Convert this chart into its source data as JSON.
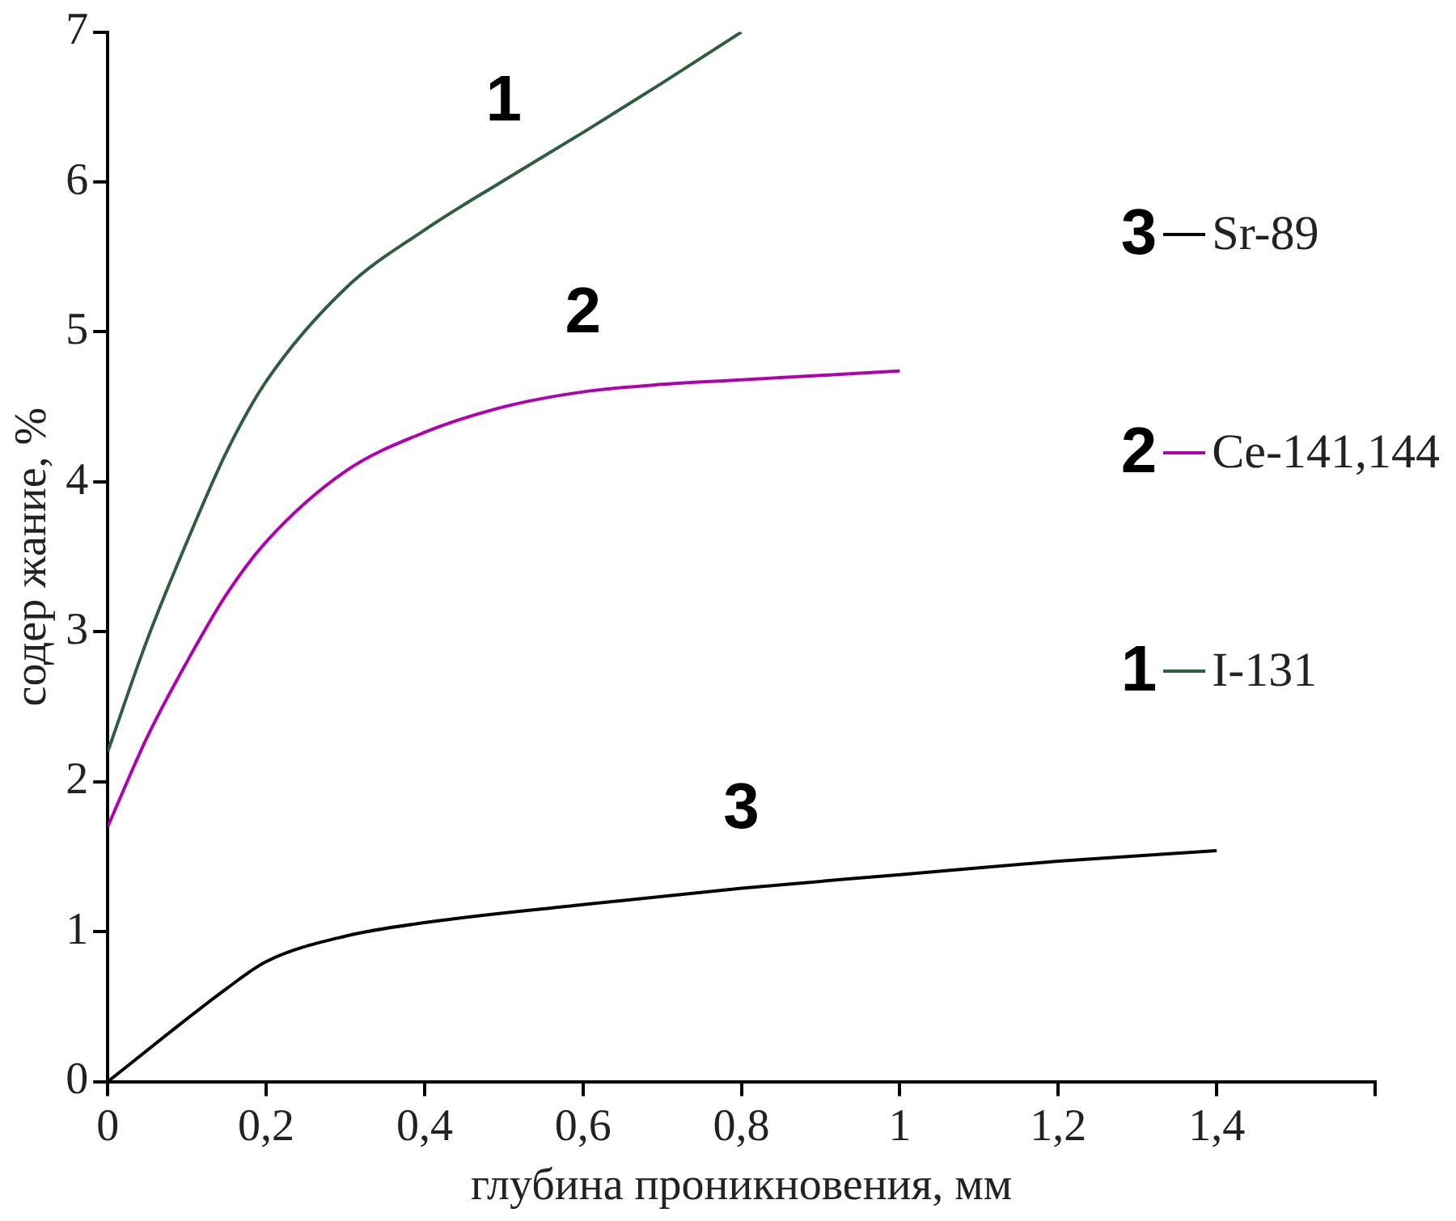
{
  "chart_data": {
    "type": "line",
    "xlabel": "глубина проникновения, мм",
    "ylabel": "содер жание, %",
    "xlim": [
      0,
      1.6
    ],
    "ylim": [
      0,
      7
    ],
    "xticks": [
      0,
      {
        "value": 0.2,
        "label": "0,2"
      },
      {
        "value": 0.4,
        "label": "0,4"
      },
      {
        "value": 0.6,
        "label": "0,6"
      },
      {
        "value": 0.8,
        "label": "0,8"
      },
      1,
      {
        "value": 1.2,
        "label": "1,2"
      },
      {
        "value": 1.4,
        "label": "1,4"
      },
      {
        "value": 1.6,
        "label": null
      }
    ],
    "yticks": [
      0,
      1,
      2,
      3,
      4,
      5,
      6,
      7
    ],
    "grid": false,
    "legend": "right",
    "marker": "none",
    "line_style": "solid",
    "annotations": [
      "1",
      "2",
      "3"
    ],
    "series": [
      {
        "name": "I-131",
        "color": "#2e5e3e",
        "x": [
          0,
          0.05,
          0.1,
          0.15,
          0.2,
          0.3,
          0.4,
          0.5,
          0.6,
          0.7,
          0.8
        ],
        "values": [
          2.2,
          2.95,
          3.6,
          4.2,
          4.67,
          5.29,
          5.68,
          6.01,
          6.33,
          6.66,
          7.0
        ]
      },
      {
        "name": "Ce-141,144",
        "color": "#b000b0",
        "x": [
          0,
          0.05,
          0.1,
          0.15,
          0.2,
          0.3,
          0.4,
          0.5,
          0.6,
          0.7,
          0.8,
          0.9,
          1.0
        ],
        "values": [
          1.7,
          2.3,
          2.8,
          3.25,
          3.6,
          4.07,
          4.33,
          4.5,
          4.6,
          4.65,
          4.68,
          4.71,
          4.74
        ]
      },
      {
        "name": "Sr-89",
        "color": "#000000",
        "x": [
          0,
          0.15,
          0.2,
          0.3,
          0.4,
          0.6,
          0.8,
          1.0,
          1.2,
          1.4
        ],
        "values": [
          0,
          0.62,
          0.8,
          0.97,
          1.06,
          1.18,
          1.29,
          1.38,
          1.47,
          1.54
        ]
      }
    ]
  }
}
